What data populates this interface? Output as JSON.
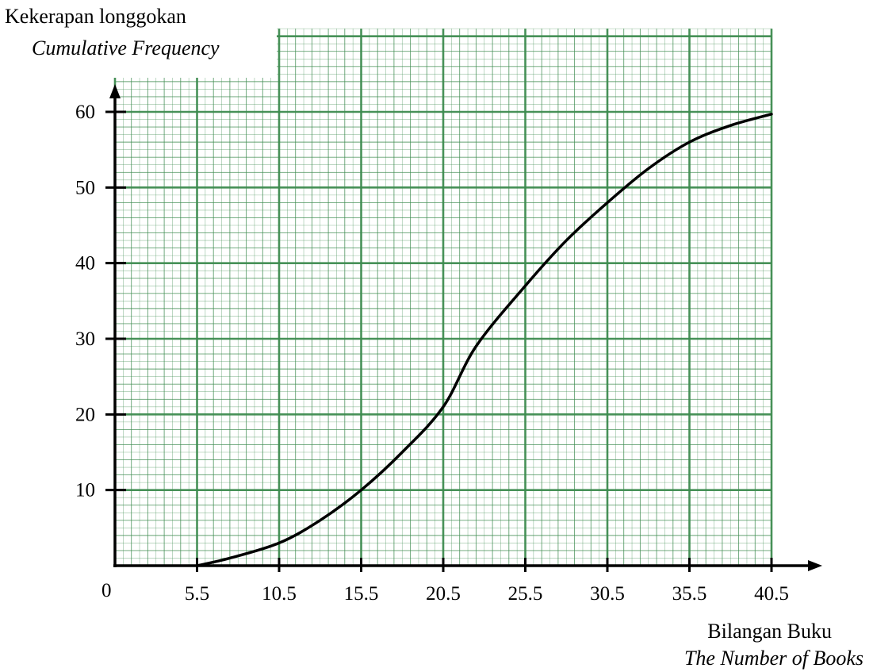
{
  "chart_data": {
    "type": "line",
    "title": "",
    "ylabel": {
      "line1": "Kekerapan longgokan",
      "line2": "Cumulative Frequency"
    },
    "xlabel": {
      "line1": "Bilangan Buku",
      "line2": "The Number of Books"
    },
    "origin_label": "0",
    "xlim": [
      0.5,
      40.5
    ],
    "ylim": [
      0,
      60
    ],
    "x_ticks": [
      "5.5",
      "10.5",
      "15.5",
      "20.5",
      "25.5",
      "30.5",
      "35.5",
      "40.5"
    ],
    "x_tick_values": [
      5.5,
      10.5,
      15.5,
      20.5,
      25.5,
      30.5,
      35.5,
      40.5
    ],
    "y_ticks": [
      "10",
      "20",
      "30",
      "40",
      "50",
      "60"
    ],
    "y_tick_values": [
      10,
      20,
      30,
      40,
      50,
      60
    ],
    "grid": true,
    "grid_color": "#3d8b4f",
    "series": [
      {
        "x": [
          5.5,
          7.5,
          10.5,
          13,
          15.5,
          18,
          20.5,
          22.5,
          25.5,
          28,
          30.5,
          33,
          35.5,
          38,
          40.5
        ],
        "y": [
          0,
          1,
          3,
          6,
          10,
          15,
          21,
          29,
          37,
          43,
          48,
          52.5,
          56,
          58.2,
          59.7
        ],
        "color": "#000000"
      }
    ]
  }
}
